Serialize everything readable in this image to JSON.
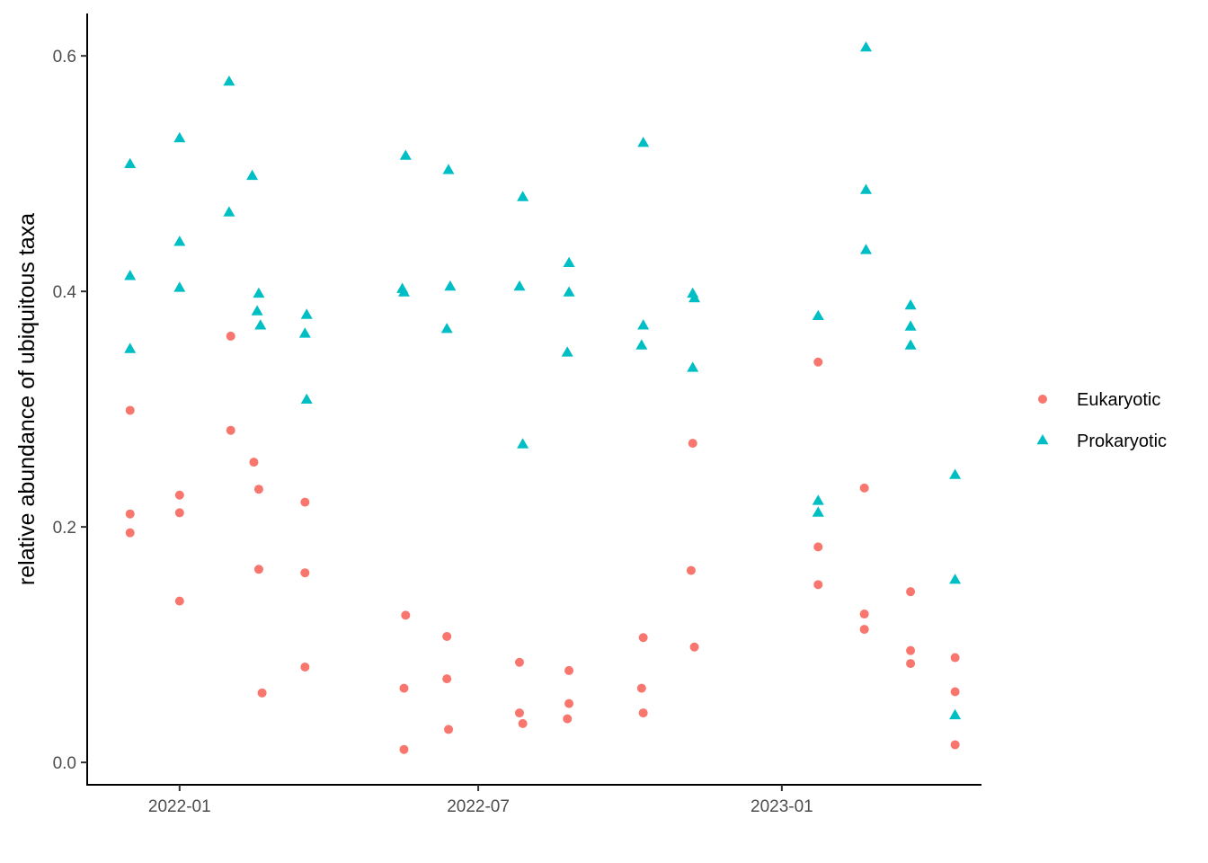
{
  "chart_data": {
    "type": "scatter",
    "title": "",
    "xlabel": "",
    "ylabel": "relative abundance of ubiquitous taxa",
    "x_type": "date",
    "xlim": [
      "2021-11-06",
      "2023-05-02"
    ],
    "ylim": [
      -0.019,
      0.636
    ],
    "x_ticks": [
      {
        "date": "2022-01-01",
        "label": "2022-01"
      },
      {
        "date": "2022-07-01",
        "label": "2022-07"
      },
      {
        "date": "2023-01-01",
        "label": "2023-01"
      }
    ],
    "y_ticks": [
      {
        "value": 0.0,
        "label": "0.0"
      },
      {
        "value": 0.2,
        "label": "0.2"
      },
      {
        "value": 0.4,
        "label": "0.4"
      },
      {
        "value": 0.6,
        "label": "0.6"
      }
    ],
    "grid": false,
    "legend_position": "right",
    "series": [
      {
        "name": "Eukaryotic",
        "shape": "circle",
        "color": "#F8766D",
        "points": [
          {
            "x": "2021-12-02",
            "y": 0.299
          },
          {
            "x": "2021-12-02",
            "y": 0.211
          },
          {
            "x": "2021-12-02",
            "y": 0.195
          },
          {
            "x": "2022-01-01",
            "y": 0.227
          },
          {
            "x": "2022-01-01",
            "y": 0.212
          },
          {
            "x": "2022-01-01",
            "y": 0.137
          },
          {
            "x": "2022-02-01",
            "y": 0.362
          },
          {
            "x": "2022-02-01",
            "y": 0.282
          },
          {
            "x": "2022-02-15",
            "y": 0.255
          },
          {
            "x": "2022-02-18",
            "y": 0.232
          },
          {
            "x": "2022-02-18",
            "y": 0.164
          },
          {
            "x": "2022-02-20",
            "y": 0.059
          },
          {
            "x": "2022-03-18",
            "y": 0.221
          },
          {
            "x": "2022-03-18",
            "y": 0.161
          },
          {
            "x": "2022-03-18",
            "y": 0.081
          },
          {
            "x": "2022-05-17",
            "y": 0.063
          },
          {
            "x": "2022-05-17",
            "y": 0.011
          },
          {
            "x": "2022-05-18",
            "y": 0.125
          },
          {
            "x": "2022-06-12",
            "y": 0.107
          },
          {
            "x": "2022-06-12",
            "y": 0.071
          },
          {
            "x": "2022-06-13",
            "y": 0.028
          },
          {
            "x": "2022-07-26",
            "y": 0.085
          },
          {
            "x": "2022-07-26",
            "y": 0.042
          },
          {
            "x": "2022-07-28",
            "y": 0.033
          },
          {
            "x": "2022-08-25",
            "y": 0.078
          },
          {
            "x": "2022-08-25",
            "y": 0.05
          },
          {
            "x": "2022-08-24",
            "y": 0.037
          },
          {
            "x": "2022-10-09",
            "y": 0.106
          },
          {
            "x": "2022-10-08",
            "y": 0.063
          },
          {
            "x": "2022-10-09",
            "y": 0.042
          },
          {
            "x": "2022-11-08",
            "y": 0.271
          },
          {
            "x": "2022-11-07",
            "y": 0.163
          },
          {
            "x": "2022-11-09",
            "y": 0.098
          },
          {
            "x": "2023-01-23",
            "y": 0.34
          },
          {
            "x": "2023-01-23",
            "y": 0.183
          },
          {
            "x": "2023-01-23",
            "y": 0.151
          },
          {
            "x": "2023-02-20",
            "y": 0.233
          },
          {
            "x": "2023-02-20",
            "y": 0.126
          },
          {
            "x": "2023-02-20",
            "y": 0.113
          },
          {
            "x": "2023-03-20",
            "y": 0.145
          },
          {
            "x": "2023-03-20",
            "y": 0.095
          },
          {
            "x": "2023-03-20",
            "y": 0.084
          },
          {
            "x": "2023-04-16",
            "y": 0.089
          },
          {
            "x": "2023-04-16",
            "y": 0.06
          },
          {
            "x": "2023-04-16",
            "y": 0.015
          }
        ]
      },
      {
        "name": "Prokaryotic",
        "shape": "triangle",
        "color": "#00BFC4",
        "points": [
          {
            "x": "2021-12-02",
            "y": 0.508
          },
          {
            "x": "2021-12-02",
            "y": 0.413
          },
          {
            "x": "2021-12-02",
            "y": 0.351
          },
          {
            "x": "2022-01-01",
            "y": 0.53
          },
          {
            "x": "2022-01-01",
            "y": 0.442
          },
          {
            "x": "2022-01-01",
            "y": 0.403
          },
          {
            "x": "2022-01-31",
            "y": 0.578
          },
          {
            "x": "2022-01-31",
            "y": 0.467
          },
          {
            "x": "2022-02-14",
            "y": 0.498
          },
          {
            "x": "2022-02-18",
            "y": 0.398
          },
          {
            "x": "2022-02-17",
            "y": 0.383
          },
          {
            "x": "2022-02-19",
            "y": 0.371
          },
          {
            "x": "2022-03-19",
            "y": 0.38
          },
          {
            "x": "2022-03-18",
            "y": 0.364
          },
          {
            "x": "2022-03-19",
            "y": 0.308
          },
          {
            "x": "2022-05-18",
            "y": 0.515
          },
          {
            "x": "2022-05-16",
            "y": 0.402
          },
          {
            "x": "2022-05-17",
            "y": 0.399
          },
          {
            "x": "2022-06-13",
            "y": 0.503
          },
          {
            "x": "2022-06-14",
            "y": 0.404
          },
          {
            "x": "2022-06-12",
            "y": 0.368
          },
          {
            "x": "2022-07-28",
            "y": 0.48
          },
          {
            "x": "2022-07-26",
            "y": 0.404
          },
          {
            "x": "2022-07-28",
            "y": 0.27
          },
          {
            "x": "2022-08-25",
            "y": 0.424
          },
          {
            "x": "2022-08-25",
            "y": 0.399
          },
          {
            "x": "2022-08-24",
            "y": 0.348
          },
          {
            "x": "2022-10-09",
            "y": 0.526
          },
          {
            "x": "2022-10-09",
            "y": 0.371
          },
          {
            "x": "2022-10-08",
            "y": 0.354
          },
          {
            "x": "2022-11-08",
            "y": 0.398
          },
          {
            "x": "2022-11-09",
            "y": 0.394
          },
          {
            "x": "2022-11-08",
            "y": 0.335
          },
          {
            "x": "2023-01-23",
            "y": 0.379
          },
          {
            "x": "2023-01-23",
            "y": 0.222
          },
          {
            "x": "2023-01-23",
            "y": 0.212
          },
          {
            "x": "2023-02-21",
            "y": 0.607
          },
          {
            "x": "2023-02-21",
            "y": 0.486
          },
          {
            "x": "2023-02-21",
            "y": 0.435
          },
          {
            "x": "2023-03-20",
            "y": 0.388
          },
          {
            "x": "2023-03-20",
            "y": 0.37
          },
          {
            "x": "2023-03-20",
            "y": 0.354
          },
          {
            "x": "2023-04-16",
            "y": 0.244
          },
          {
            "x": "2023-04-16",
            "y": 0.155
          },
          {
            "x": "2023-04-16",
            "y": 0.04
          }
        ]
      }
    ]
  }
}
